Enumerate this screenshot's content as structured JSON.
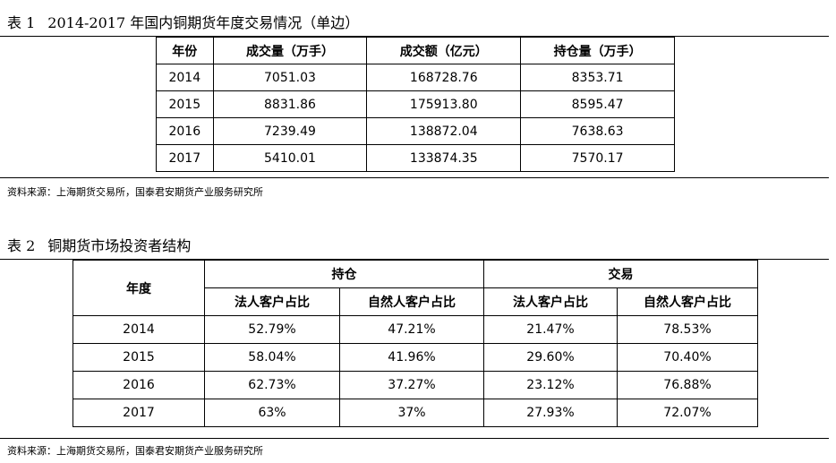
{
  "table1": {
    "caption_num": "表 1",
    "caption_text": "2014-2017 年国内铜期货年度交易情况（单边）",
    "headers": [
      "年份",
      "成交量（万手）",
      "成交额（亿元）",
      "持仓量（万手）"
    ],
    "rows": [
      [
        "2014",
        "7051.03",
        "168728.76",
        "8353.71"
      ],
      [
        "2015",
        "8831.86",
        "175913.80",
        "8595.47"
      ],
      [
        "2016",
        "7239.49",
        "138872.04",
        "7638.63"
      ],
      [
        "2017",
        "5410.01",
        "133874.35",
        "7570.17"
      ]
    ],
    "source": "资料来源：上海期货交易所，国泰君安期货产业服务研究所"
  },
  "table2": {
    "caption_num": "表 2",
    "caption_text": "铜期货市场投资者结构",
    "year_header": "年度",
    "group_headers": [
      "持仓",
      "交易"
    ],
    "sub_headers": [
      "法人客户占比",
      "自然人客户占比",
      "法人客户占比",
      "自然人客户占比"
    ],
    "rows": [
      [
        "2014",
        "52.79%",
        "47.21%",
        "21.47%",
        "78.53%"
      ],
      [
        "2015",
        "58.04%",
        "41.96%",
        "29.60%",
        "70.40%"
      ],
      [
        "2016",
        "62.73%",
        "37.27%",
        "23.12%",
        "76.88%"
      ],
      [
        "2017",
        "63%",
        "37%",
        "27.93%",
        "72.07%"
      ]
    ],
    "source": "资料来源：上海期货交易所，国泰君安期货产业服务研究所"
  }
}
